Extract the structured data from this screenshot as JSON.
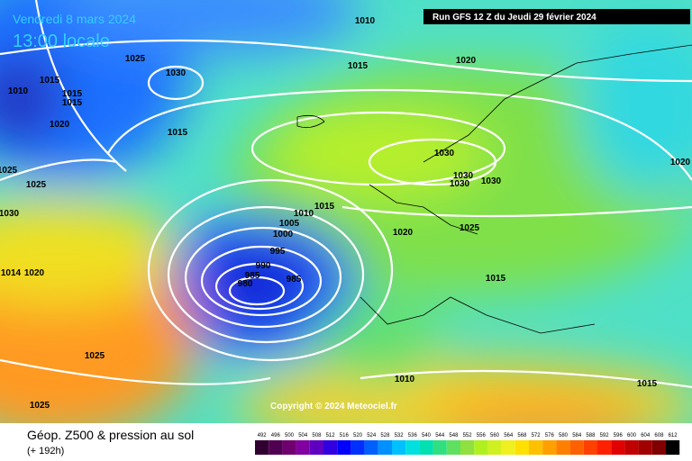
{
  "header": {
    "date": "Vendredi 8 mars 2024",
    "time": "13:00 locale",
    "run": "Run GFS 12 Z du Jeudi 29 février 2024"
  },
  "copyright": "Copyright © 2024 Meteociel.fr",
  "footer": {
    "title": "Géop. Z500 & pression au sol",
    "lead": "(+ 192h)"
  },
  "isobar_labels": [
    "1010",
    "1015",
    "1020",
    "1025",
    "1030",
    "1015",
    "1015",
    "1015",
    "1010",
    "1020",
    "1015",
    "1025",
    "1025",
    "1030",
    "1030",
    "1030",
    "1030",
    "1030",
    "1020",
    "1015",
    "1010",
    "1005",
    "1000",
    "995",
    "990",
    "985",
    "980",
    "985",
    "1020",
    "1025",
    "1015",
    "1025",
    "1025",
    "1010",
    "1015",
    "1020",
    "1014"
  ],
  "scale": [
    492,
    496,
    500,
    504,
    508,
    512,
    516,
    520,
    524,
    528,
    532,
    536,
    540,
    544,
    548,
    552,
    556,
    560,
    564,
    568,
    572,
    576,
    580,
    584,
    588,
    592,
    596,
    600,
    604,
    608,
    612
  ]
}
